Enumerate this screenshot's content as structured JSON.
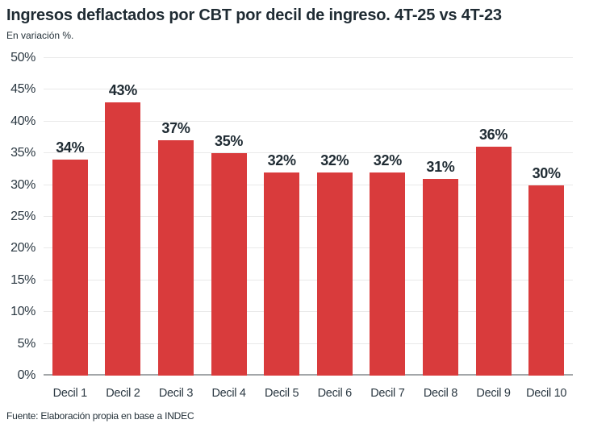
{
  "header": {
    "title": "Ingresos deflactados por CBT por decil de ingreso. 4T-25 vs 4T-23",
    "subtitle": "En variación %."
  },
  "chart_data": {
    "type": "bar",
    "title": "Ingresos deflactados por CBT por decil de ingreso. 4T-25 vs 4T-23",
    "subtitle": "En variación %.",
    "categories": [
      "Decil 1",
      "Decil 2",
      "Decil 3",
      "Decil 4",
      "Decil 5",
      "Decil 6",
      "Decil 7",
      "Decil 8",
      "Decil 9",
      "Decil 10"
    ],
    "values": [
      34,
      43,
      37,
      35,
      32,
      32,
      32,
      31,
      36,
      30
    ],
    "value_labels": [
      "34%",
      "43%",
      "37%",
      "35%",
      "32%",
      "32%",
      "32%",
      "31%",
      "36%",
      "30%"
    ],
    "xlabel": "",
    "ylabel": "En variación %.",
    "ylim": [
      0,
      50
    ],
    "ytick_values": [
      0,
      5,
      10,
      15,
      20,
      25,
      30,
      35,
      40,
      45,
      50
    ],
    "ytick_labels": [
      "0%",
      "5%",
      "10%",
      "15%",
      "20%",
      "25%",
      "30%",
      "35%",
      "40%",
      "45%",
      "50%"
    ],
    "grid": true,
    "legend": false
  },
  "footer": {
    "source": "Fuente: Elaboración propia en base a INDEC"
  },
  "colors": {
    "bar": "#d93b3c",
    "title_text": "#1f2b33",
    "axis_text": "#2b3842",
    "gridline": "#e9e9e9",
    "baseline": "#a3a6a9",
    "background": "#ffffff"
  }
}
